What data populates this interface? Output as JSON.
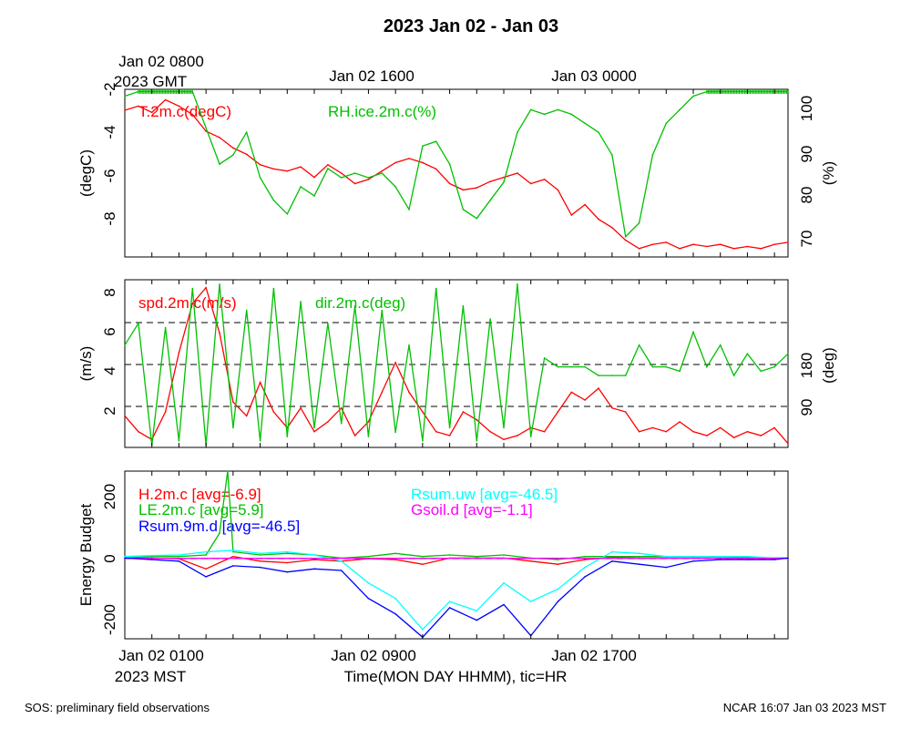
{
  "title": "2023 Jan 02 - Jan 03",
  "footer": {
    "left": "SOS: preliminary field observations",
    "right": "NCAR 16:07 Jan 03 2023 MST"
  },
  "top_axis": {
    "ticks": [
      "Jan 02 0800",
      "Jan 02 1600",
      "Jan 03 0000"
    ],
    "tz_label": "2023 GMT"
  },
  "bottom_axis": {
    "ticks": [
      "Jan 02 0100",
      "Jan 02 0900",
      "Jan 02 1700"
    ],
    "tz_label": "2023 MST",
    "xlabel": "Time(MON DAY HHMM), tic=HR"
  },
  "colors": {
    "red": "#ff0000",
    "green": "#00c000",
    "blue": "#0000ff",
    "cyan": "#00ffff",
    "magenta": "#ff00ff",
    "black": "#000000"
  },
  "chart_data": [
    {
      "type": "line",
      "panel": "temperature-humidity",
      "x_hours_mst_range": [
        0,
        24.5
      ],
      "left_axis": {
        "label": "(degC)",
        "ticks": [
          "-2",
          "-4",
          "-6",
          "-8"
        ],
        "ylim": [
          -10.0,
          -2.0
        ]
      },
      "right_axis": {
        "label": "(%)",
        "ticks": [
          "100",
          "90",
          "80",
          "70"
        ],
        "ylim": [
          67.5,
          104.5
        ]
      },
      "series": [
        {
          "name": "T.2m.c(degC)",
          "axis": "left",
          "color": "#ff0000",
          "x": [
            0,
            0.5,
            1,
            1.5,
            2,
            2.5,
            3,
            3.5,
            4,
            4.5,
            5,
            5.5,
            6,
            6.5,
            7,
            7.5,
            8,
            8.5,
            9,
            9.5,
            10,
            10.5,
            11,
            11.5,
            12,
            12.5,
            13,
            13.5,
            14,
            14.5,
            15,
            15.5,
            16,
            16.5,
            17,
            17.5,
            18,
            18.5,
            19,
            19.5,
            20,
            20.5,
            21,
            21.5,
            22,
            22.5,
            23,
            23.5,
            24,
            24.5
          ],
          "y": [
            -3.0,
            -2.8,
            -3.1,
            -2.5,
            -2.8,
            -3.2,
            -4.0,
            -4.3,
            -4.8,
            -5.1,
            -5.6,
            -5.8,
            -5.9,
            -5.7,
            -6.2,
            -5.6,
            -6.0,
            -6.5,
            -6.3,
            -5.9,
            -5.5,
            -5.3,
            -5.5,
            -5.8,
            -6.5,
            -6.8,
            -6.7,
            -6.4,
            -6.2,
            -6.0,
            -6.5,
            -6.3,
            -6.8,
            -8.0,
            -7.5,
            -8.2,
            -8.6,
            -9.2,
            -9.6,
            -9.4,
            -9.3,
            -9.6,
            -9.4,
            -9.5,
            -9.4,
            -9.6,
            -9.5,
            -9.6,
            -9.4,
            -9.3
          ]
        },
        {
          "name": "RH.ice.2m.c(%)",
          "axis": "right",
          "color": "#00c000",
          "x": [
            0,
            0.5,
            1,
            1.5,
            2,
            2.5,
            3,
            3.5,
            4,
            4.5,
            5,
            5.5,
            6,
            6.5,
            7,
            7.5,
            8,
            8.5,
            9,
            9.5,
            10,
            10.5,
            11,
            11.5,
            12,
            12.5,
            13,
            13.5,
            14,
            14.5,
            15,
            15.5,
            16,
            16.5,
            17,
            17.5,
            18,
            18.5,
            19,
            19.5,
            20,
            20.5,
            21,
            21.5,
            22,
            22.5,
            23,
            23.5,
            24,
            24.5
          ],
          "y": [
            103,
            104,
            104,
            104,
            104,
            104,
            96,
            88,
            90,
            95,
            85,
            80,
            77,
            83,
            81,
            87,
            85,
            86,
            85,
            86,
            83,
            78,
            92,
            93,
            88,
            78,
            76,
            80,
            84,
            95,
            100,
            99,
            100,
            99,
            97,
            95,
            90,
            72,
            75,
            90,
            97,
            100,
            103,
            104,
            104,
            104,
            104,
            104,
            104,
            104
          ]
        }
      ]
    },
    {
      "type": "line",
      "panel": "wind",
      "x_hours_mst_range": [
        0,
        24.5
      ],
      "left_axis": {
        "label": "(m/s)",
        "ticks": [
          "8",
          "6",
          "4",
          "2"
        ],
        "ylim": [
          0.2,
          8.7
        ]
      },
      "right_axis": {
        "label": "(deg)",
        "ticks": [
          "180",
          "90"
        ],
        "ylim": [
          15,
          400
        ]
      },
      "reference_lines_deg": [
        90,
        180,
        270
      ],
      "series": [
        {
          "name": "spd.2m.c(m/s)",
          "axis": "left",
          "color": "#ff0000",
          "x": [
            0,
            0.5,
            1,
            1.5,
            2,
            2.5,
            3,
            3.5,
            4,
            4.5,
            5,
            5.5,
            6,
            6.5,
            7,
            7.5,
            8,
            8.5,
            9,
            9.5,
            10,
            10.5,
            11,
            11.5,
            12,
            12.5,
            13,
            13.5,
            14,
            14.5,
            15,
            15.5,
            16,
            16.5,
            17,
            17.5,
            18,
            18.5,
            19,
            19.5,
            20,
            20.5,
            21,
            21.5,
            22,
            22.5,
            23,
            23.5,
            24,
            24.5
          ],
          "y": [
            1.8,
            1.0,
            0.6,
            2.0,
            5.0,
            7.5,
            8.3,
            6.0,
            2.5,
            1.8,
            3.5,
            2.0,
            1.2,
            2.2,
            1.0,
            1.5,
            2.2,
            0.8,
            1.5,
            3.0,
            4.5,
            3.0,
            2.0,
            1.0,
            0.8,
            2.0,
            1.6,
            1.0,
            0.6,
            0.8,
            1.2,
            1.0,
            2.0,
            3.0,
            2.6,
            3.2,
            2.2,
            2.0,
            1.0,
            1.2,
            1.0,
            1.5,
            1.0,
            0.8,
            1.2,
            0.7,
            1.0,
            0.8,
            1.2,
            0.4
          ]
        },
        {
          "name": "dir.2m.c(deg)",
          "axis": "right",
          "color": "#00c000",
          "x": [
            0,
            0.5,
            1,
            1.5,
            2,
            2.5,
            3,
            3.5,
            4,
            4.5,
            5,
            5.5,
            6,
            6.5,
            7,
            7.5,
            8,
            8.5,
            9,
            9.5,
            10,
            10.5,
            11,
            11.5,
            12,
            12.5,
            13,
            13.5,
            14,
            14.5,
            15,
            15.5,
            16,
            16.5,
            17,
            17.5,
            18,
            18.5,
            19,
            19.5,
            20,
            20.5,
            21,
            21.5,
            22,
            22.5,
            23,
            23.5,
            24,
            24.5
          ],
          "y": [
            250,
            300,
            20,
            290,
            30,
            380,
            20,
            390,
            60,
            330,
            30,
            380,
            40,
            350,
            60,
            300,
            70,
            340,
            40,
            330,
            50,
            250,
            30,
            380,
            60,
            340,
            30,
            310,
            60,
            390,
            40,
            220,
            200,
            200,
            200,
            180,
            180,
            180,
            250,
            200,
            200,
            190,
            280,
            200,
            250,
            180,
            230,
            190,
            200,
            230
          ]
        }
      ]
    },
    {
      "type": "line",
      "panel": "energy-budget",
      "x_hours_mst_range": [
        0,
        24.5
      ],
      "left_axis": {
        "label": "Energy Budget",
        "ticks": [
          "200",
          "0",
          "-200"
        ],
        "ylim": [
          -260,
          280
        ]
      },
      "series": [
        {
          "name": "H.2m.c",
          "legend": "H.2m.c [avg=-6.9]",
          "color": "#ff0000",
          "x": [
            0,
            1,
            2,
            3,
            4,
            5,
            6,
            7,
            8,
            9,
            10,
            11,
            12,
            13,
            14,
            15,
            16,
            17,
            18,
            19,
            20,
            21,
            22,
            23,
            24,
            24.5
          ],
          "y": [
            0,
            0,
            -2,
            -35,
            5,
            -10,
            -15,
            -5,
            -10,
            -2,
            -5,
            -20,
            0,
            0,
            0,
            -10,
            -20,
            -5,
            2,
            0,
            0,
            0,
            0,
            0,
            0,
            0
          ]
        },
        {
          "name": "LE.2m.c",
          "legend": "LE.2m.c [avg=5.9]",
          "color": "#00c000",
          "x": [
            0,
            1,
            2,
            3,
            3.5,
            3.8,
            4,
            5,
            6,
            7,
            8,
            9,
            10,
            11,
            12,
            13,
            14,
            15,
            16,
            17,
            18,
            19,
            20,
            21,
            22,
            23,
            24,
            24.5
          ],
          "y": [
            0,
            5,
            5,
            10,
            80,
            280,
            20,
            10,
            15,
            10,
            0,
            5,
            15,
            5,
            10,
            5,
            10,
            0,
            -5,
            5,
            5,
            5,
            5,
            5,
            5,
            2,
            0,
            0
          ]
        },
        {
          "name": "Rsum.uw",
          "legend": "Rsum.uw [avg=-46.5]",
          "color": "#00ffff",
          "x": [
            0,
            1,
            2,
            3,
            4,
            5,
            6,
            7,
            8,
            9,
            10,
            11,
            12,
            13,
            14,
            15,
            16,
            17,
            18,
            19,
            20,
            21,
            22,
            23,
            24,
            24.5
          ],
          "y": [
            5,
            8,
            10,
            20,
            25,
            15,
            20,
            10,
            -10,
            -80,
            -130,
            -230,
            -140,
            -170,
            -80,
            -140,
            -100,
            -30,
            20,
            15,
            5,
            5,
            5,
            5,
            0,
            0
          ]
        },
        {
          "name": "Gsoil.d",
          "legend": "Gsoil.d [avg=-1.1]",
          "color": "#ff00ff",
          "x": [
            0,
            24.5
          ],
          "y": [
            -1,
            -1
          ]
        },
        {
          "name": "Rsum.9m.d",
          "legend": "Rsum.9m.d [avg=-46.5]",
          "color": "#0000ff",
          "x": [
            0,
            1,
            2,
            3,
            4,
            5,
            6,
            7,
            8,
            9,
            10,
            11,
            12,
            13,
            14,
            15,
            16,
            17,
            18,
            19,
            20,
            21,
            22,
            23,
            24,
            24.5
          ],
          "y": [
            0,
            -5,
            -10,
            -60,
            -25,
            -30,
            -45,
            -35,
            -40,
            -130,
            -180,
            -255,
            -160,
            -200,
            -150,
            -250,
            -140,
            -60,
            -10,
            -20,
            -30,
            -10,
            -5,
            -5,
            -5,
            0
          ]
        }
      ]
    }
  ]
}
